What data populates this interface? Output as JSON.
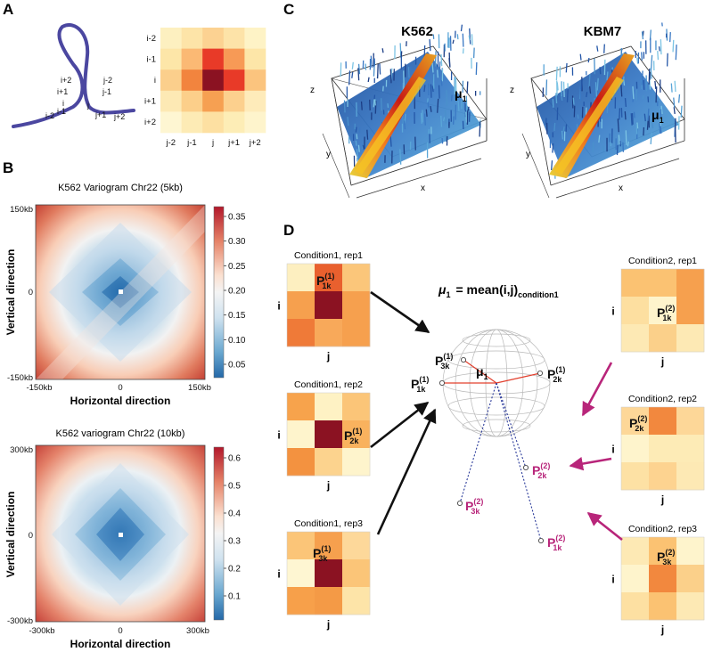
{
  "panels": {
    "a": "A",
    "b": "B",
    "c": "C",
    "d": "D"
  },
  "panel_a": {
    "loop_labels": [
      "i+2",
      "i+1",
      "i",
      "i-1",
      "i-2",
      "j-2",
      "j-1",
      "j",
      "j+1",
      "j+2"
    ],
    "row_labels": [
      "i-2",
      "i-1",
      "i",
      "i+1",
      "i+2"
    ],
    "col_labels": [
      "j-2",
      "j-1",
      "j",
      "j+1",
      "j+2"
    ],
    "matrix": [
      [
        "#fdf0c0",
        "#fde4a8",
        "#fcd292",
        "#fde3a8",
        "#fef3c6"
      ],
      [
        "#fde6a8",
        "#fbb974",
        "#e83a28",
        "#f79a56",
        "#fde6a8"
      ],
      [
        "#fbcf8c",
        "#f2843e",
        "#8b1222",
        "#e83a28",
        "#fbc47e"
      ],
      [
        "#fde9b4",
        "#fccf8a",
        "#f6a052",
        "#fcd08e",
        "#feebba"
      ],
      [
        "#fef6d2",
        "#fdebb5",
        "#fde0a2",
        "#fdedb6",
        "#fef4cc"
      ]
    ]
  },
  "panel_b": {
    "top": {
      "title": "K562 Variogram Chr22 (5kb)",
      "ylabel": "Vertical direction",
      "xlabel": "Horizontal direction",
      "xticks": [
        "-150kb",
        "0",
        "150kb"
      ],
      "yticks": [
        "150kb",
        "0",
        "-150kb"
      ],
      "colorbar_ticks": [
        "0.35",
        "0.30",
        "0.25",
        "0.20",
        "0.15",
        "0.10",
        "0.05"
      ]
    },
    "bottom": {
      "title": "K562 variogram  Chr22 (10kb)",
      "ylabel": "Vertical direction",
      "xlabel": "Horizontal direction",
      "xticks": [
        "-300kb",
        "0",
        "300kb"
      ],
      "yticks": [
        "300kb",
        "0",
        "-300kb"
      ],
      "colorbar_ticks": [
        "0.6",
        "0.5",
        "0.4",
        "0.3",
        "0.2",
        "0.1"
      ]
    }
  },
  "panel_c": {
    "left_title": "K562",
    "right_title": "KBM7",
    "mu_label": "μ",
    "mu_sub": "1",
    "axis_z": "z",
    "axis_y": "y",
    "axis_x": "x"
  },
  "panel_d": {
    "equation": {
      "mu": "μ",
      "mu_sub": "1",
      "rhs": "= mean(i,j)",
      "rhs_sub": "condition1"
    },
    "p_symbol": "P",
    "row_axis": "i",
    "col_axis": "j",
    "condition1": [
      {
        "title": "Condition1, rep1",
        "label_sub": "1k",
        "label_sup": "(1)",
        "cells": [
          "#fdefc0",
          "#e9602e",
          "#fbc67a",
          "#f6a04e",
          "#8b1222",
          "#f6a04e",
          "#ef7a38",
          "#f8a95a",
          "#f6a04e"
        ]
      },
      {
        "title": "Condition1, rep2",
        "label_sub": "2k",
        "label_sup": "(1)",
        "cells": [
          "#f7a34c",
          "#fef2c4",
          "#fbc578",
          "#fef4cc",
          "#8b1222",
          "#f9b25e",
          "#f39240",
          "#fcd38e",
          "#fef4cc"
        ]
      },
      {
        "title": "Condition1, rep3",
        "label_sub": "3k",
        "label_sup": "(1)",
        "cells": [
          "#fbc578",
          "#f6a04e",
          "#fdd89a",
          "#fef6d2",
          "#8b1222",
          "#fbc578",
          "#f7a04a",
          "#f49a46",
          "#fde4a8"
        ]
      }
    ],
    "condition2": [
      {
        "title": "Condition2, rep1",
        "label_sub": "1k",
        "label_sup": "(2)",
        "cells": [
          "#fbc272",
          "#fbc272",
          "#f6a04e",
          "#fddfa0",
          "#fef4cc",
          "#f6a04e",
          "#fde9b4",
          "#fbd08a",
          "#fde9b4"
        ]
      },
      {
        "title": "Condition2, rep2",
        "label_sub": "2k",
        "label_sup": "(2)",
        "cells": [
          "#fdd798",
          "#f2883e",
          "#fdd798",
          "#fef4cc",
          "#fdebb6",
          "#fdebb6",
          "#fde1a4",
          "#fdd390",
          "#fde9b4"
        ]
      },
      {
        "title": "Condition2, rep3",
        "label_sub": "3k",
        "label_sup": "(2)",
        "cells": [
          "#fde9b4",
          "#fbc272",
          "#fef4cc",
          "#fef4cc",
          "#f2883e",
          "#fbd08a",
          "#fde0a2",
          "#fbc272",
          "#fde9b4"
        ]
      }
    ],
    "sphere_labels": {
      "p3k1": {
        "sub": "3k",
        "sup": "(1)"
      },
      "p1k1": {
        "sub": "1k",
        "sup": "(1)"
      },
      "p2k1": {
        "sub": "2k",
        "sup": "(1)"
      },
      "p2k2": {
        "sub": "2k",
        "sup": "(2)"
      },
      "p3k2": {
        "sub": "3k",
        "sup": "(2)"
      },
      "p1k2": {
        "sub": "1k",
        "sup": "(2)"
      }
    },
    "colors": {
      "condition2": "#b8257a",
      "line": "#e2402e",
      "dotted": "#2a3a9a"
    }
  }
}
